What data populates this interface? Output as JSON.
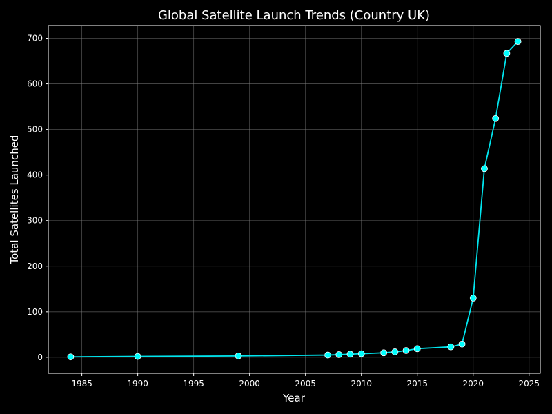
{
  "chart_data": {
    "type": "line",
    "title": "Global Satellite Launch Trends (Country UK)",
    "xlabel": "Year",
    "ylabel": "Total Satellites Launched",
    "xlim": [
      1982,
      2026
    ],
    "ylim": [
      -35,
      728
    ],
    "xticks": [
      1985,
      1990,
      1995,
      2000,
      2005,
      2010,
      2015,
      2020,
      2025
    ],
    "yticks": [
      0,
      100,
      200,
      300,
      400,
      500,
      600,
      700
    ],
    "grid": true,
    "series": [
      {
        "x": [
          1984,
          1990,
          1999,
          2007,
          2008,
          2009,
          2010,
          2012,
          2013,
          2014,
          2015,
          2018,
          2019,
          2020,
          2021,
          2022,
          2023,
          2024
        ],
        "values": [
          1,
          2,
          3,
          5,
          6,
          7,
          8,
          10,
          12,
          15,
          19,
          23,
          29,
          130,
          414,
          524,
          667,
          693
        ]
      }
    ]
  },
  "colors": {
    "background": "#000000",
    "line": "#00e5ee",
    "marker_fill": "#00ffff",
    "marker_edge": "#ffffff",
    "grid": "#808080",
    "axes": "#ffffff",
    "text": "#ffffff"
  }
}
